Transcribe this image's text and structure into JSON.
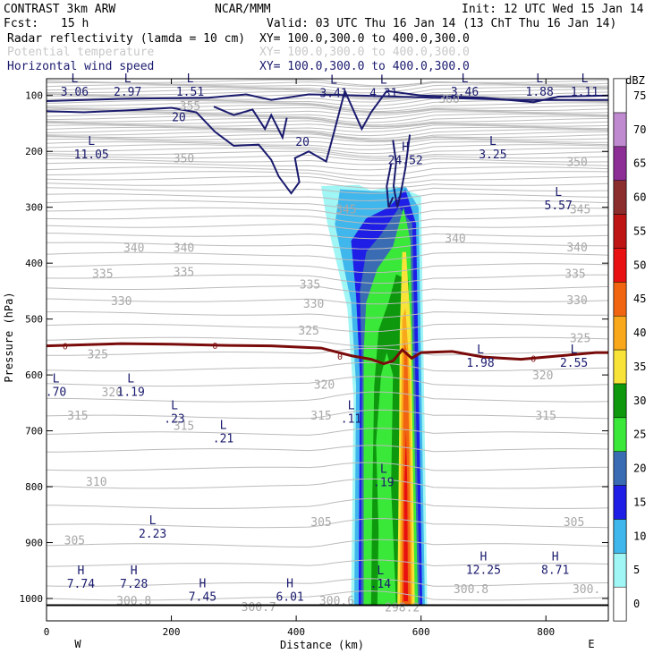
{
  "header": {
    "model": "CONTRAST  3km ARW",
    "org": "NCAR/MMM",
    "init": "Init: 12 UTC Wed 15 Jan 14",
    "fcst_label": "Fcst:",
    "fcst_value": "15 h",
    "valid": "Valid: 03 UTC Thu 16 Jan 14 (13 ChT Thu 16 Jan 14)",
    "fields": [
      {
        "name": "Radar reflectivity (lamda = 10 cm)",
        "xy": "XY= 100.0,300.0 to 400.0,300.0",
        "color": "#000000"
      },
      {
        "name": "Potential temperature",
        "xy": "XY= 100.0,300.0 to 400.0,300.0",
        "color": "#c8c8c8"
      },
      {
        "name": "Horizontal wind speed",
        "xy": "XY= 100.0,300.0 to 400.0,300.0",
        "color": "#1a1a6e"
      }
    ]
  },
  "chart_data": {
    "type": "heatmap",
    "title": "",
    "xlabel": "Distance (km)",
    "ylabel": "Pressure (hPa)",
    "xlim": [
      0,
      900
    ],
    "ylim": [
      1040,
      70
    ],
    "x_ticks": [
      0,
      200,
      400,
      600,
      800
    ],
    "y_ticks": [
      100,
      200,
      300,
      400,
      500,
      600,
      700,
      800,
      900,
      1000
    ],
    "x_end_labels": {
      "left": "W",
      "right": "E"
    },
    "colorbar": {
      "unit": "dBZ",
      "levels": [
        0,
        5,
        10,
        15,
        20,
        25,
        30,
        35,
        40,
        45,
        50,
        55,
        60,
        65,
        70,
        75
      ],
      "colors": [
        "#ffffff",
        "#a0f5f5",
        "#3fb6ec",
        "#1e1ee6",
        "#3a6cb4",
        "#3ae83a",
        "#0d980d",
        "#f8e438",
        "#f8a81a",
        "#f26510",
        "#e81010",
        "#be1414",
        "#8c2d2d",
        "#8c2e96",
        "#c08ad0",
        "#ffffff"
      ]
    },
    "reflectivity_band": {
      "x_range_km": [
        495,
        600
      ],
      "top_hPa": 260,
      "core_x_km": [
        560,
        585
      ]
    },
    "freezing_line": {
      "label": "0",
      "pressure_hPa_approx": 548,
      "color": "#7a0b0b"
    },
    "theta_contours": [
      {
        "value": "355",
        "x": 230,
        "p": 118
      },
      {
        "value": "360",
        "x": 645,
        "p": 105
      },
      {
        "value": "350",
        "x": 220,
        "p": 212
      },
      {
        "value": "350",
        "x": 850,
        "p": 218
      },
      {
        "value": "345",
        "x": 480,
        "p": 303
      },
      {
        "value": "345",
        "x": 855,
        "p": 303
      },
      {
        "value": "340",
        "x": 140,
        "p": 372
      },
      {
        "value": "340",
        "x": 220,
        "p": 372
      },
      {
        "value": "340",
        "x": 655,
        "p": 355
      },
      {
        "value": "340",
        "x": 850,
        "p": 371
      },
      {
        "value": "335",
        "x": 90,
        "p": 418
      },
      {
        "value": "335",
        "x": 220,
        "p": 415
      },
      {
        "value": "335",
        "x": 422,
        "p": 437
      },
      {
        "value": "335",
        "x": 847,
        "p": 418
      },
      {
        "value": "330",
        "x": 120,
        "p": 467
      },
      {
        "value": "330",
        "x": 428,
        "p": 472
      },
      {
        "value": "330",
        "x": 850,
        "p": 465
      },
      {
        "value": "325",
        "x": 420,
        "p": 520
      },
      {
        "value": "325",
        "x": 82,
        "p": 562
      },
      {
        "value": "325",
        "x": 855,
        "p": 533
      },
      {
        "value": "320",
        "x": 105,
        "p": 630
      },
      {
        "value": "320",
        "x": 445,
        "p": 617
      },
      {
        "value": "320",
        "x": 795,
        "p": 600
      },
      {
        "value": "315",
        "x": 50,
        "p": 672
      },
      {
        "value": "315",
        "x": 220,
        "p": 690
      },
      {
        "value": "315",
        "x": 440,
        "p": 672
      },
      {
        "value": "315",
        "x": 800,
        "p": 672
      },
      {
        "value": "310",
        "x": 80,
        "p": 790
      },
      {
        "value": "305",
        "x": 45,
        "p": 895
      },
      {
        "value": "305",
        "x": 440,
        "p": 862
      },
      {
        "value": "305",
        "x": 845,
        "p": 862
      },
      {
        "value": "300.8",
        "x": 140,
        "p": 1003
      },
      {
        "value": "300.7",
        "x": 340,
        "p": 1014
      },
      {
        "value": "300.6",
        "x": 465,
        "p": 1003
      },
      {
        "value": "298.2",
        "x": 570,
        "p": 1015
      },
      {
        "value": "300.8",
        "x": 680,
        "p": 982
      },
      {
        "value": "300.",
        "x": 865,
        "p": 982
      }
    ],
    "wind_contours": [
      {
        "value": "20",
        "x": 212,
        "p": 138
      },
      {
        "value": "20",
        "x": 410,
        "p": 182
      }
    ],
    "extrema": [
      {
        "type": "L",
        "value": "3.06",
        "x": 45,
        "p": 80
      },
      {
        "type": "L",
        "value": "2.97",
        "x": 130,
        "p": 80
      },
      {
        "type": "L",
        "value": "1.51",
        "x": 230,
        "p": 80
      },
      {
        "type": "L",
        "value": "3.41",
        "x": 460,
        "p": 82
      },
      {
        "type": "L",
        "value": "4.31",
        "x": 540,
        "p": 82
      },
      {
        "type": "L",
        "value": "3.46",
        "x": 670,
        "p": 80
      },
      {
        "type": "L",
        "value": "1.88",
        "x": 790,
        "p": 80
      },
      {
        "type": "L",
        "value": "1.11",
        "x": 862,
        "p": 80
      },
      {
        "type": "L",
        "value": "11.05",
        "x": 72,
        "p": 192
      },
      {
        "type": "H",
        "value": "24.52",
        "x": 575,
        "p": 202
      },
      {
        "type": "L",
        "value": "3.25",
        "x": 715,
        "p": 192
      },
      {
        "type": "L",
        "value": "5.57",
        "x": 820,
        "p": 283
      },
      {
        "type": "L",
        "value": "1.98",
        "x": 695,
        "p": 565
      },
      {
        "type": "L",
        "value": "2.55",
        "x": 845,
        "p": 565
      },
      {
        "type": "L",
        "value": ".70",
        "x": 15,
        "p": 617
      },
      {
        "type": "L",
        "value": "1.19",
        "x": 135,
        "p": 617
      },
      {
        "type": "L",
        "value": ".23",
        "x": 205,
        "p": 665
      },
      {
        "type": "L",
        "value": ".11",
        "x": 488,
        "p": 665
      },
      {
        "type": "L",
        "value": ".21",
        "x": 283,
        "p": 700
      },
      {
        "type": "L",
        "value": ".19",
        "x": 540,
        "p": 778
      },
      {
        "type": "L",
        "value": "2.23",
        "x": 170,
        "p": 870
      },
      {
        "type": "H",
        "value": "7.74",
        "x": 55,
        "p": 960
      },
      {
        "type": "H",
        "value": "7.28",
        "x": 140,
        "p": 960
      },
      {
        "type": "H",
        "value": "7.45",
        "x": 250,
        "p": 983
      },
      {
        "type": "H",
        "value": "6.01",
        "x": 390,
        "p": 983
      },
      {
        "type": "L",
        "value": ".14",
        "x": 535,
        "p": 960
      },
      {
        "type": "H",
        "value": "12.25",
        "x": 700,
        "p": 935
      },
      {
        "type": "H",
        "value": "8.71",
        "x": 815,
        "p": 935
      }
    ]
  }
}
